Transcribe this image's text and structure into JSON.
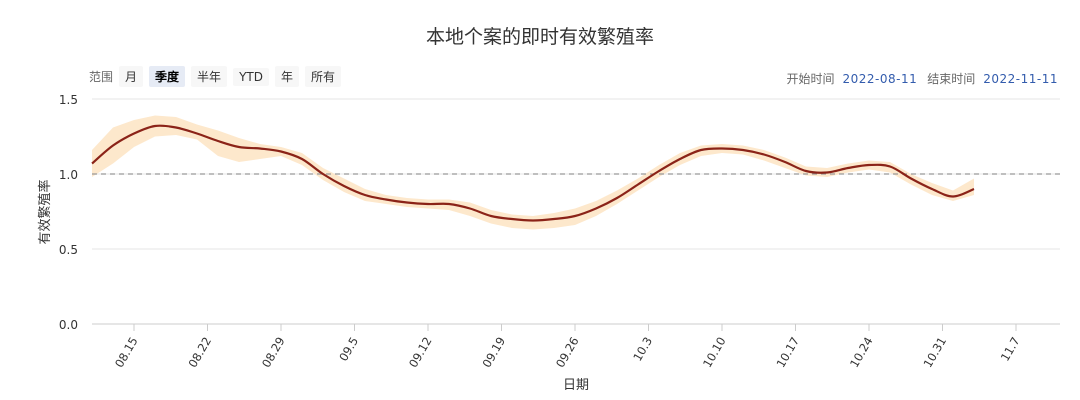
{
  "chart_data": {
    "type": "line",
    "title": "本地个案的即时有效繁殖率",
    "xlabel": "日期",
    "ylabel": "有效繁殖率",
    "ylim": [
      0,
      1.5
    ],
    "yticks": [
      "0.0",
      "0.5",
      "1.0",
      "1.5"
    ],
    "reference_line": 1.0,
    "x_tick_labels": [
      "08.15",
      "08.22",
      "08.29",
      "09.5",
      "09.12",
      "09.19",
      "09.26",
      "10.3",
      "10.10",
      "10.17",
      "10.24",
      "10.31",
      "11.7"
    ],
    "series": [
      {
        "type": "line",
        "color": "#8b2318",
        "x": [
          "2022-08-11",
          "2022-08-13",
          "2022-08-15",
          "2022-08-17",
          "2022-08-19",
          "2022-08-21",
          "2022-08-23",
          "2022-08-25",
          "2022-08-27",
          "2022-08-29",
          "2022-08-31",
          "2022-09-02",
          "2022-09-04",
          "2022-09-06",
          "2022-09-08",
          "2022-09-10",
          "2022-09-12",
          "2022-09-14",
          "2022-09-16",
          "2022-09-18",
          "2022-09-20",
          "2022-09-22",
          "2022-09-24",
          "2022-09-26",
          "2022-09-28",
          "2022-09-30",
          "2022-10-02",
          "2022-10-04",
          "2022-10-06",
          "2022-10-08",
          "2022-10-10",
          "2022-10-12",
          "2022-10-14",
          "2022-10-16",
          "2022-10-18",
          "2022-10-20",
          "2022-10-22",
          "2022-10-24",
          "2022-10-26",
          "2022-10-28",
          "2022-10-30",
          "2022-11-01",
          "2022-11-03"
        ],
        "values": [
          1.07,
          1.19,
          1.27,
          1.32,
          1.31,
          1.27,
          1.22,
          1.18,
          1.17,
          1.15,
          1.1,
          1.0,
          0.92,
          0.86,
          0.83,
          0.81,
          0.8,
          0.8,
          0.77,
          0.72,
          0.7,
          0.69,
          0.7,
          0.72,
          0.77,
          0.84,
          0.93,
          1.02,
          1.1,
          1.16,
          1.17,
          1.16,
          1.13,
          1.08,
          1.02,
          1.01,
          1.04,
          1.06,
          1.05,
          0.97,
          0.9,
          0.85,
          0.9
        ]
      },
      {
        "type": "band",
        "color": "#fde8cc",
        "x": [
          "2022-08-11",
          "2022-08-13",
          "2022-08-15",
          "2022-08-17",
          "2022-08-19",
          "2022-08-21",
          "2022-08-23",
          "2022-08-25",
          "2022-08-27",
          "2022-08-29",
          "2022-08-31",
          "2022-09-02",
          "2022-09-04",
          "2022-09-06",
          "2022-09-08",
          "2022-09-10",
          "2022-09-12",
          "2022-09-14",
          "2022-09-16",
          "2022-09-18",
          "2022-09-20",
          "2022-09-22",
          "2022-09-24",
          "2022-09-26",
          "2022-09-28",
          "2022-09-30",
          "2022-10-02",
          "2022-10-04",
          "2022-10-06",
          "2022-10-08",
          "2022-10-10",
          "2022-10-12",
          "2022-10-14",
          "2022-10-16",
          "2022-10-18",
          "2022-10-20",
          "2022-10-22",
          "2022-10-24",
          "2022-10-26",
          "2022-10-28",
          "2022-10-30",
          "2022-11-01",
          "2022-11-03"
        ],
        "lower": [
          0.98,
          1.07,
          1.18,
          1.25,
          1.26,
          1.23,
          1.12,
          1.08,
          1.1,
          1.12,
          1.06,
          0.96,
          0.88,
          0.82,
          0.8,
          0.78,
          0.77,
          0.76,
          0.72,
          0.67,
          0.64,
          0.63,
          0.64,
          0.66,
          0.72,
          0.8,
          0.89,
          0.98,
          1.06,
          1.12,
          1.14,
          1.13,
          1.09,
          1.04,
          0.99,
          0.98,
          1.01,
          1.03,
          1.01,
          0.93,
          0.86,
          0.82,
          0.86
        ],
        "upper": [
          1.16,
          1.31,
          1.36,
          1.39,
          1.38,
          1.33,
          1.29,
          1.24,
          1.2,
          1.18,
          1.14,
          1.04,
          0.97,
          0.9,
          0.86,
          0.84,
          0.83,
          0.83,
          0.81,
          0.76,
          0.73,
          0.72,
          0.74,
          0.77,
          0.82,
          0.89,
          0.97,
          1.06,
          1.14,
          1.19,
          1.2,
          1.19,
          1.16,
          1.11,
          1.05,
          1.04,
          1.07,
          1.09,
          1.08,
          1.0,
          0.94,
          0.89,
          0.97
        ]
      }
    ]
  },
  "controls": {
    "range_label": "范围",
    "range_options": [
      "月",
      "季度",
      "半年",
      "YTD",
      "年",
      "所有"
    ],
    "range_selected": "季度",
    "start_label": "开始时间",
    "start_value": "2022-08-11",
    "end_label": "结束时间",
    "end_value": "2022-11-11"
  }
}
